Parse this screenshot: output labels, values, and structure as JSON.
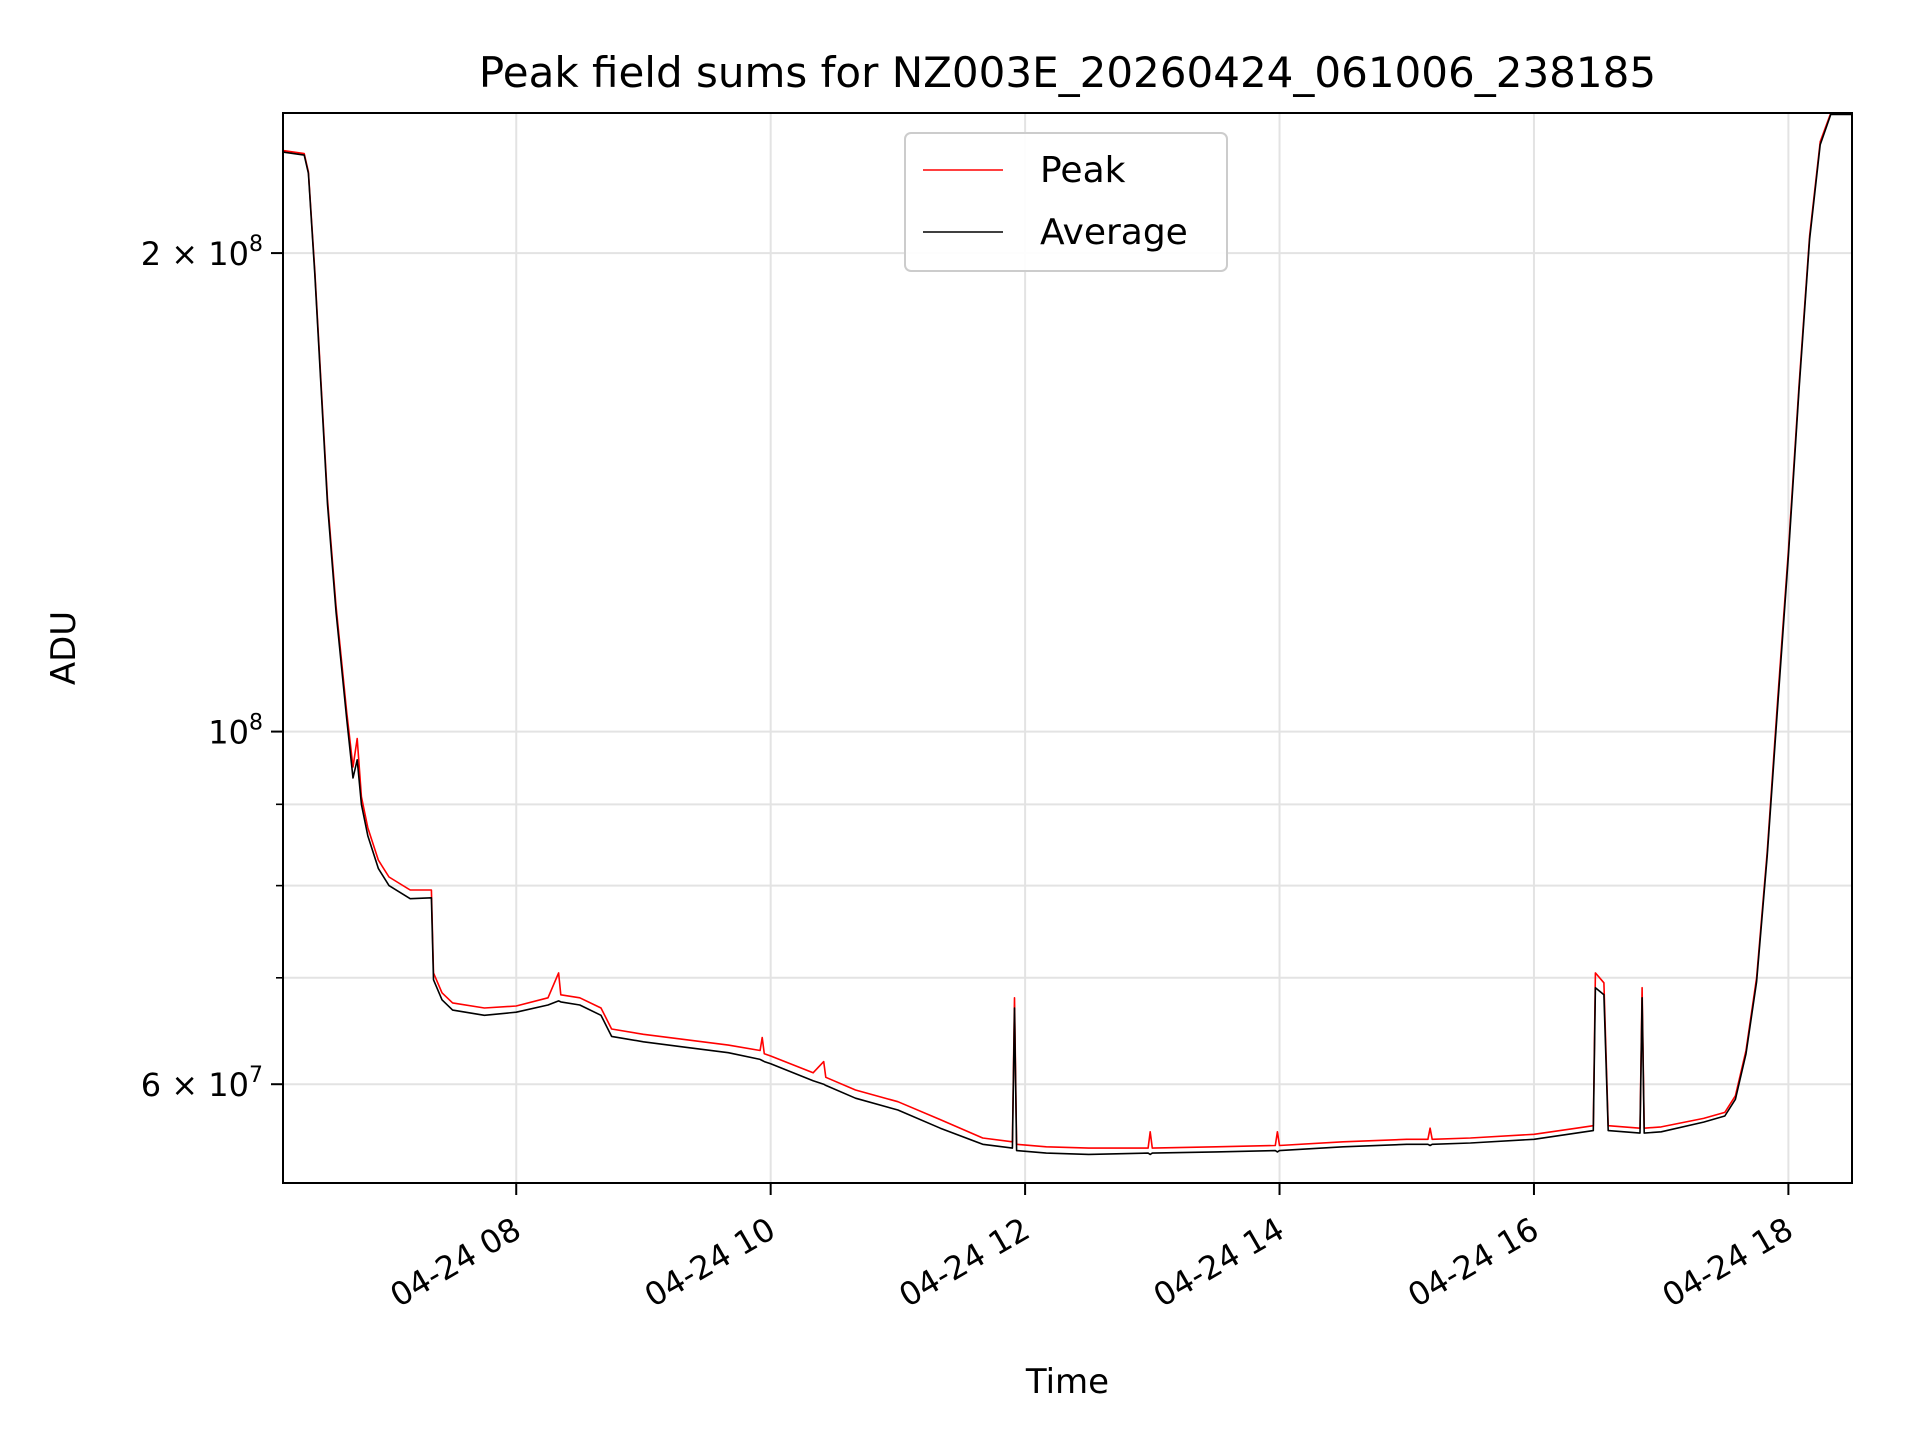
{
  "chart_data": {
    "type": "line",
    "title": "Peak field sums for NZ003E_20260424_061006_238185",
    "xlabel": "Time",
    "ylabel": "ADU",
    "x_is_time": true,
    "xlim": [
      "2026-04-24 06:10",
      "2026-04-24 18:30"
    ],
    "ylim": [
      52000000,
      245000000
    ],
    "yscale": "log",
    "grid": true,
    "legend_position": "upper center",
    "x_ticks": [
      {
        "t": "2026-04-24 08:00",
        "label": "04-24 08"
      },
      {
        "t": "2026-04-24 10:00",
        "label": "04-24 10"
      },
      {
        "t": "2026-04-24 12:00",
        "label": "04-24 12"
      },
      {
        "t": "2026-04-24 14:00",
        "label": "04-24 14"
      },
      {
        "t": "2026-04-24 16:00",
        "label": "04-24 16"
      },
      {
        "t": "2026-04-24 18:00",
        "label": "04-24 18"
      }
    ],
    "y_major_ticks": [
      {
        "v": 60000000,
        "mant": "6 × 10",
        "exp": "7"
      },
      {
        "v": 100000000,
        "mant": "10",
        "exp": "8"
      },
      {
        "v": 200000000,
        "mant": "2 × 10",
        "exp": "8"
      }
    ],
    "y_minor_ticks": [
      70000000,
      80000000,
      90000000
    ],
    "series": [
      {
        "name": "Peak",
        "color": "#ff0000",
        "points": [
          [
            "2026-04-24 06:10",
            232000000
          ],
          [
            "2026-04-24 06:20",
            231000000
          ],
          [
            "2026-04-24 06:22",
            225000000
          ],
          [
            "2026-04-24 06:25",
            195000000
          ],
          [
            "2026-04-24 06:28",
            165000000
          ],
          [
            "2026-04-24 06:31",
            140000000
          ],
          [
            "2026-04-24 06:35",
            120000000
          ],
          [
            "2026-04-24 06:40",
            103000000
          ],
          [
            "2026-04-24 06:43",
            95000000
          ],
          [
            "2026-04-24 06:45",
            99000000
          ],
          [
            "2026-04-24 06:47",
            91000000
          ],
          [
            "2026-04-24 06:50",
            87000000
          ],
          [
            "2026-04-24 06:55",
            83000000
          ],
          [
            "2026-04-24 07:00",
            81000000
          ],
          [
            "2026-04-24 07:10",
            79500000
          ],
          [
            "2026-04-24 07:20",
            79500000
          ],
          [
            "2026-04-24 07:21",
            70500000
          ],
          [
            "2026-04-24 07:25",
            68500000
          ],
          [
            "2026-04-24 07:30",
            67500000
          ],
          [
            "2026-04-24 07:45",
            67000000
          ],
          [
            "2026-04-24 08:00",
            67200000
          ],
          [
            "2026-04-24 08:15",
            68000000
          ],
          [
            "2026-04-24 08:20",
            70500000
          ],
          [
            "2026-04-24 08:21",
            68300000
          ],
          [
            "2026-04-24 08:30",
            68000000
          ],
          [
            "2026-04-24 08:40",
            67000000
          ],
          [
            "2026-04-24 08:45",
            65000000
          ],
          [
            "2026-04-24 09:00",
            64500000
          ],
          [
            "2026-04-24 09:20",
            64000000
          ],
          [
            "2026-04-24 09:40",
            63500000
          ],
          [
            "2026-04-24 09:55",
            63000000
          ],
          [
            "2026-04-24 09:56",
            64200000
          ],
          [
            "2026-04-24 09:57",
            62700000
          ],
          [
            "2026-04-24 10:00",
            62500000
          ],
          [
            "2026-04-24 10:20",
            61000000
          ],
          [
            "2026-04-24 10:25",
            62000000
          ],
          [
            "2026-04-24 10:26",
            60600000
          ],
          [
            "2026-04-24 10:40",
            59500000
          ],
          [
            "2026-04-24 11:00",
            58500000
          ],
          [
            "2026-04-24 11:20",
            57000000
          ],
          [
            "2026-04-24 11:40",
            55500000
          ],
          [
            "2026-04-24 11:54",
            55200000
          ],
          [
            "2026-04-24 11:55",
            68000000
          ],
          [
            "2026-04-24 11:56",
            55000000
          ],
          [
            "2026-04-24 12:10",
            54800000
          ],
          [
            "2026-04-24 12:30",
            54700000
          ],
          [
            "2026-04-24 12:58",
            54700000
          ],
          [
            "2026-04-24 12:59",
            56000000
          ],
          [
            "2026-04-24 13:00",
            54700000
          ],
          [
            "2026-04-24 13:30",
            54800000
          ],
          [
            "2026-04-24 13:58",
            54900000
          ],
          [
            "2026-04-24 13:59",
            56000000
          ],
          [
            "2026-04-24 14:00",
            54900000
          ],
          [
            "2026-04-24 14:30",
            55200000
          ],
          [
            "2026-04-24 15:00",
            55400000
          ],
          [
            "2026-04-24 15:10",
            55400000
          ],
          [
            "2026-04-24 15:11",
            56300000
          ],
          [
            "2026-04-24 15:12",
            55400000
          ],
          [
            "2026-04-24 15:30",
            55500000
          ],
          [
            "2026-04-24 16:00",
            55800000
          ],
          [
            "2026-04-24 16:20",
            56300000
          ],
          [
            "2026-04-24 16:28",
            56500000
          ],
          [
            "2026-04-24 16:29",
            70500000
          ],
          [
            "2026-04-24 16:33",
            69500000
          ],
          [
            "2026-04-24 16:35",
            56500000
          ],
          [
            "2026-04-24 16:50",
            56300000
          ],
          [
            "2026-04-24 16:51",
            69000000
          ],
          [
            "2026-04-24 16:52",
            56300000
          ],
          [
            "2026-04-24 17:00",
            56400000
          ],
          [
            "2026-04-24 17:20",
            57100000
          ],
          [
            "2026-04-24 17:30",
            57600000
          ],
          [
            "2026-04-24 17:35",
            59000000
          ],
          [
            "2026-04-24 17:40",
            63000000
          ],
          [
            "2026-04-24 17:45",
            70000000
          ],
          [
            "2026-04-24 17:50",
            84000000
          ],
          [
            "2026-04-24 17:55",
            105000000
          ],
          [
            "2026-04-24 18:00",
            130000000
          ],
          [
            "2026-04-24 18:05",
            165000000
          ],
          [
            "2026-04-24 18:10",
            205000000
          ],
          [
            "2026-04-24 18:15",
            235000000
          ],
          [
            "2026-04-24 18:20",
            245000000
          ],
          [
            "2026-04-24 18:30",
            245000000
          ]
        ]
      },
      {
        "name": "Average",
        "color": "#000000",
        "points": [
          [
            "2026-04-24 06:10",
            231500000
          ],
          [
            "2026-04-24 06:20",
            230500000
          ],
          [
            "2026-04-24 06:22",
            224500000
          ],
          [
            "2026-04-24 06:25",
            194000000
          ],
          [
            "2026-04-24 06:28",
            164000000
          ],
          [
            "2026-04-24 06:31",
            139000000
          ],
          [
            "2026-04-24 06:35",
            119000000
          ],
          [
            "2026-04-24 06:40",
            102000000
          ],
          [
            "2026-04-24 06:43",
            93500000
          ],
          [
            "2026-04-24 06:45",
            96000000
          ],
          [
            "2026-04-24 06:47",
            90000000
          ],
          [
            "2026-04-24 06:50",
            86000000
          ],
          [
            "2026-04-24 06:55",
            82000000
          ],
          [
            "2026-04-24 07:00",
            80000000
          ],
          [
            "2026-04-24 07:10",
            78500000
          ],
          [
            "2026-04-24 07:20",
            78600000
          ],
          [
            "2026-04-24 07:21",
            69800000
          ],
          [
            "2026-04-24 07:25",
            67800000
          ],
          [
            "2026-04-24 07:30",
            66800000
          ],
          [
            "2026-04-24 07:45",
            66300000
          ],
          [
            "2026-04-24 08:00",
            66600000
          ],
          [
            "2026-04-24 08:15",
            67300000
          ],
          [
            "2026-04-24 08:20",
            67700000
          ],
          [
            "2026-04-24 08:21",
            67600000
          ],
          [
            "2026-04-24 08:30",
            67300000
          ],
          [
            "2026-04-24 08:40",
            66300000
          ],
          [
            "2026-04-24 08:45",
            64300000
          ],
          [
            "2026-04-24 09:00",
            63800000
          ],
          [
            "2026-04-24 09:20",
            63300000
          ],
          [
            "2026-04-24 09:40",
            62800000
          ],
          [
            "2026-04-24 09:55",
            62200000
          ],
          [
            "2026-04-24 09:56",
            62100000
          ],
          [
            "2026-04-24 09:57",
            62000000
          ],
          [
            "2026-04-24 10:00",
            61800000
          ],
          [
            "2026-04-24 10:20",
            60300000
          ],
          [
            "2026-04-24 10:25",
            60000000
          ],
          [
            "2026-04-24 10:26",
            59900000
          ],
          [
            "2026-04-24 10:40",
            58800000
          ],
          [
            "2026-04-24 11:00",
            57800000
          ],
          [
            "2026-04-24 11:20",
            56300000
          ],
          [
            "2026-04-24 11:40",
            55000000
          ],
          [
            "2026-04-24 11:54",
            54700000
          ],
          [
            "2026-04-24 11:55",
            67000000
          ],
          [
            "2026-04-24 11:56",
            54500000
          ],
          [
            "2026-04-24 12:10",
            54300000
          ],
          [
            "2026-04-24 12:30",
            54200000
          ],
          [
            "2026-04-24 12:58",
            54300000
          ],
          [
            "2026-04-24 12:59",
            54200000
          ],
          [
            "2026-04-24 13:00",
            54300000
          ],
          [
            "2026-04-24 13:30",
            54400000
          ],
          [
            "2026-04-24 13:58",
            54500000
          ],
          [
            "2026-04-24 13:59",
            54400000
          ],
          [
            "2026-04-24 14:00",
            54500000
          ],
          [
            "2026-04-24 14:30",
            54800000
          ],
          [
            "2026-04-24 15:00",
            55000000
          ],
          [
            "2026-04-24 15:10",
            55000000
          ],
          [
            "2026-04-24 15:11",
            54900000
          ],
          [
            "2026-04-24 15:12",
            55000000
          ],
          [
            "2026-04-24 15:30",
            55100000
          ],
          [
            "2026-04-24 16:00",
            55400000
          ],
          [
            "2026-04-24 16:20",
            55900000
          ],
          [
            "2026-04-24 16:28",
            56100000
          ],
          [
            "2026-04-24 16:29",
            69000000
          ],
          [
            "2026-04-24 16:33",
            68300000
          ],
          [
            "2026-04-24 16:35",
            56100000
          ],
          [
            "2026-04-24 16:50",
            55900000
          ],
          [
            "2026-04-24 16:51",
            68000000
          ],
          [
            "2026-04-24 16:52",
            55900000
          ],
          [
            "2026-04-24 17:00",
            56000000
          ],
          [
            "2026-04-24 17:20",
            56800000
          ],
          [
            "2026-04-24 17:30",
            57300000
          ],
          [
            "2026-04-24 17:35",
            58700000
          ],
          [
            "2026-04-24 17:40",
            62700000
          ],
          [
            "2026-04-24 17:45",
            69600000
          ],
          [
            "2026-04-24 17:50",
            83500000
          ],
          [
            "2026-04-24 17:55",
            104000000
          ],
          [
            "2026-04-24 18:00",
            129000000
          ],
          [
            "2026-04-24 18:05",
            164000000
          ],
          [
            "2026-04-24 18:10",
            204000000
          ],
          [
            "2026-04-24 18:15",
            234000000
          ],
          [
            "2026-04-24 18:20",
            244500000
          ],
          [
            "2026-04-24 18:30",
            244500000
          ]
        ]
      }
    ]
  }
}
